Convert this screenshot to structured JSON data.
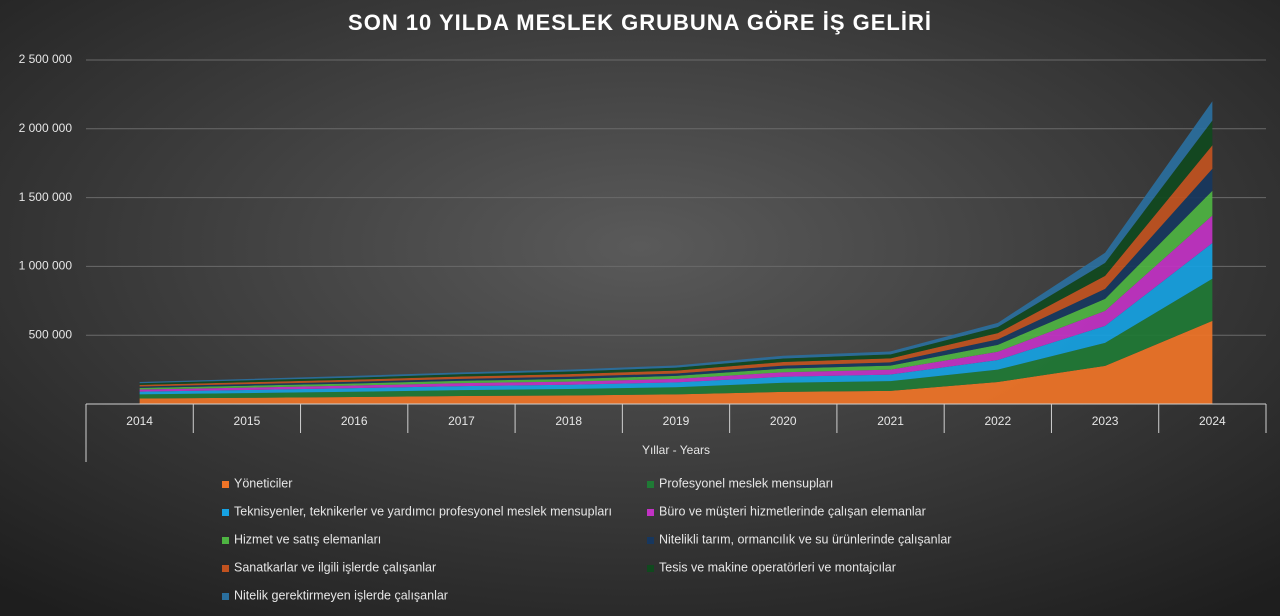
{
  "chart_data": {
    "type": "stacked_area",
    "title": "SON 10 YILDA MESLEK GRUBUNA GÖRE İŞ GELİRİ",
    "x_label": "Yıllar - Years",
    "categories": [
      "2014",
      "2015",
      "2016",
      "2017",
      "2018",
      "2019",
      "2020",
      "2021",
      "2022",
      "2023",
      "2024"
    ],
    "ylim": [
      0,
      2500000
    ],
    "yticks": [
      {
        "value": 500000,
        "label": "500 000"
      },
      {
        "value": 1000000,
        "label": "1 000 000"
      },
      {
        "value": 1500000,
        "label": "1 500 000"
      },
      {
        "value": 2000000,
        "label": "2 000 000"
      },
      {
        "value": 2500000,
        "label": "2 500 000"
      }
    ],
    "grid": true,
    "legend": "bottom",
    "series": [
      {
        "name": "Yöneticiler",
        "color": "#f07427",
        "values": [
          40000,
          45000,
          51000,
          58000,
          62000,
          70000,
          88000,
          95000,
          160000,
          277000,
          604000
        ]
      },
      {
        "name": "Profesyonel meslek mensupları",
        "color": "#1f7a35",
        "values": [
          30000,
          34000,
          38000,
          43000,
          47000,
          52000,
          66000,
          71000,
          90000,
          167000,
          306000
        ]
      },
      {
        "name": "Teknisyenler, teknikerler ve yardımcı profesyonel meslek mensupları",
        "color": "#16a2e2",
        "values": [
          20000,
          23000,
          26000,
          29000,
          31000,
          35000,
          44000,
          48000,
          70000,
          124000,
          260000
        ]
      },
      {
        "name": "Büro ve müşteri hizmetlerinde çalışan elemanlar",
        "color": "#c232c4",
        "values": [
          15000,
          17000,
          19000,
          22000,
          23000,
          26000,
          33000,
          36000,
          60000,
          109000,
          200000
        ]
      },
      {
        "name": "Hizmet ve satış elemanları",
        "color": "#4eb442",
        "values": [
          12000,
          14000,
          15000,
          17000,
          19000,
          21000,
          26000,
          29000,
          50000,
          87000,
          180000
        ]
      },
      {
        "name": "Nitelikli tarım, ormancılık ve su ürünlerinde çalışanlar",
        "color": "#17375e",
        "values": [
          10000,
          11000,
          13000,
          14000,
          16000,
          18000,
          22000,
          24000,
          40000,
          73000,
          160000
        ]
      },
      {
        "name": "Sanatkarlar ve ilgili işlerde çalışanlar",
        "color": "#c1521f",
        "values": [
          12000,
          14000,
          15000,
          17000,
          19000,
          21000,
          26000,
          29000,
          45000,
          94000,
          170000
        ]
      },
      {
        "name": "Tesis ve makine operatörleri ve montajcılar",
        "color": "#10491e",
        "values": [
          12000,
          14000,
          15000,
          17000,
          19000,
          21000,
          26000,
          29000,
          45000,
          95000,
          180000
        ]
      },
      {
        "name": "Nitelik gerektirmeyen işlerde çalışanlar",
        "color": "#2a6f9e",
        "values": [
          9000,
          10000,
          12000,
          13000,
          14000,
          16000,
          20000,
          21000,
          30000,
          73000,
          140000
        ]
      }
    ]
  }
}
